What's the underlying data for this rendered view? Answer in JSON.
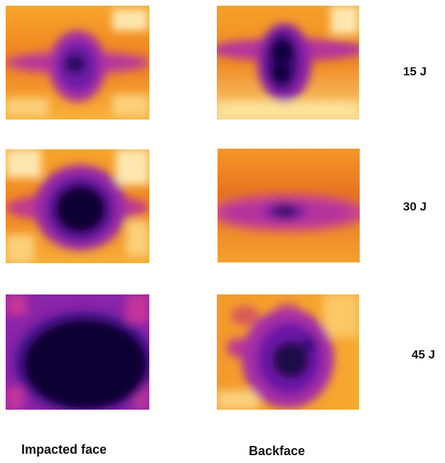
{
  "rows": [
    {
      "energy": "15 J"
    },
    {
      "energy": "30 J"
    },
    {
      "energy": "45 J"
    }
  ],
  "columns": [
    {
      "label": "Impacted face"
    },
    {
      "label": "Backface"
    }
  ],
  "colors": {
    "hot_light": "#fde7b0",
    "hot": "#f7a52a",
    "warm": "#e8671e",
    "magenta": "#c4359a",
    "purple": "#7a1ba6",
    "dark": "#1a0847",
    "core": "#0b0433"
  }
}
